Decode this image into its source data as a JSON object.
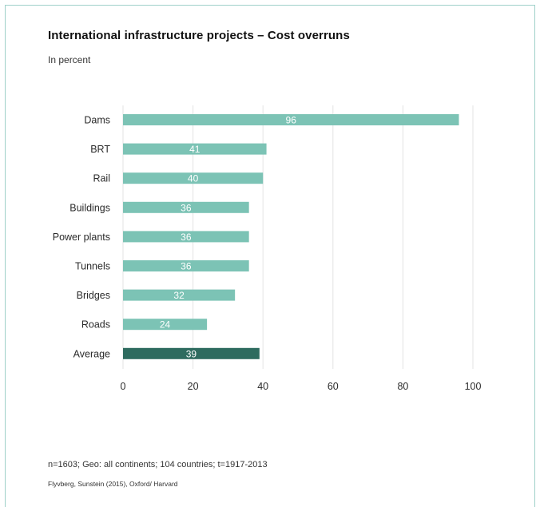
{
  "title": "International infrastructure projects – Cost overruns",
  "subtitle": "In percent",
  "note": "n=1603; Geo: all continents; 104 countries; t=1917-2013",
  "source": "Flyvberg, Sunstein (2015), Oxford/ Harvard",
  "colors": {
    "bar": "#7cc3b5",
    "highlight": "#2e6b5f",
    "grid": "#e3e3e3"
  },
  "chart_data": {
    "type": "bar",
    "orientation": "horizontal",
    "categories": [
      "Dams",
      "BRT",
      "Rail",
      "Buildings",
      "Power plants",
      "Tunnels",
      "Bridges",
      "Roads",
      "Average"
    ],
    "values": [
      96,
      41,
      40,
      36,
      36,
      36,
      32,
      24,
      39
    ],
    "highlight_category": "Average",
    "xlim": [
      0,
      100
    ],
    "xticks": [
      0,
      20,
      40,
      60,
      80,
      100
    ],
    "grid": true
  }
}
